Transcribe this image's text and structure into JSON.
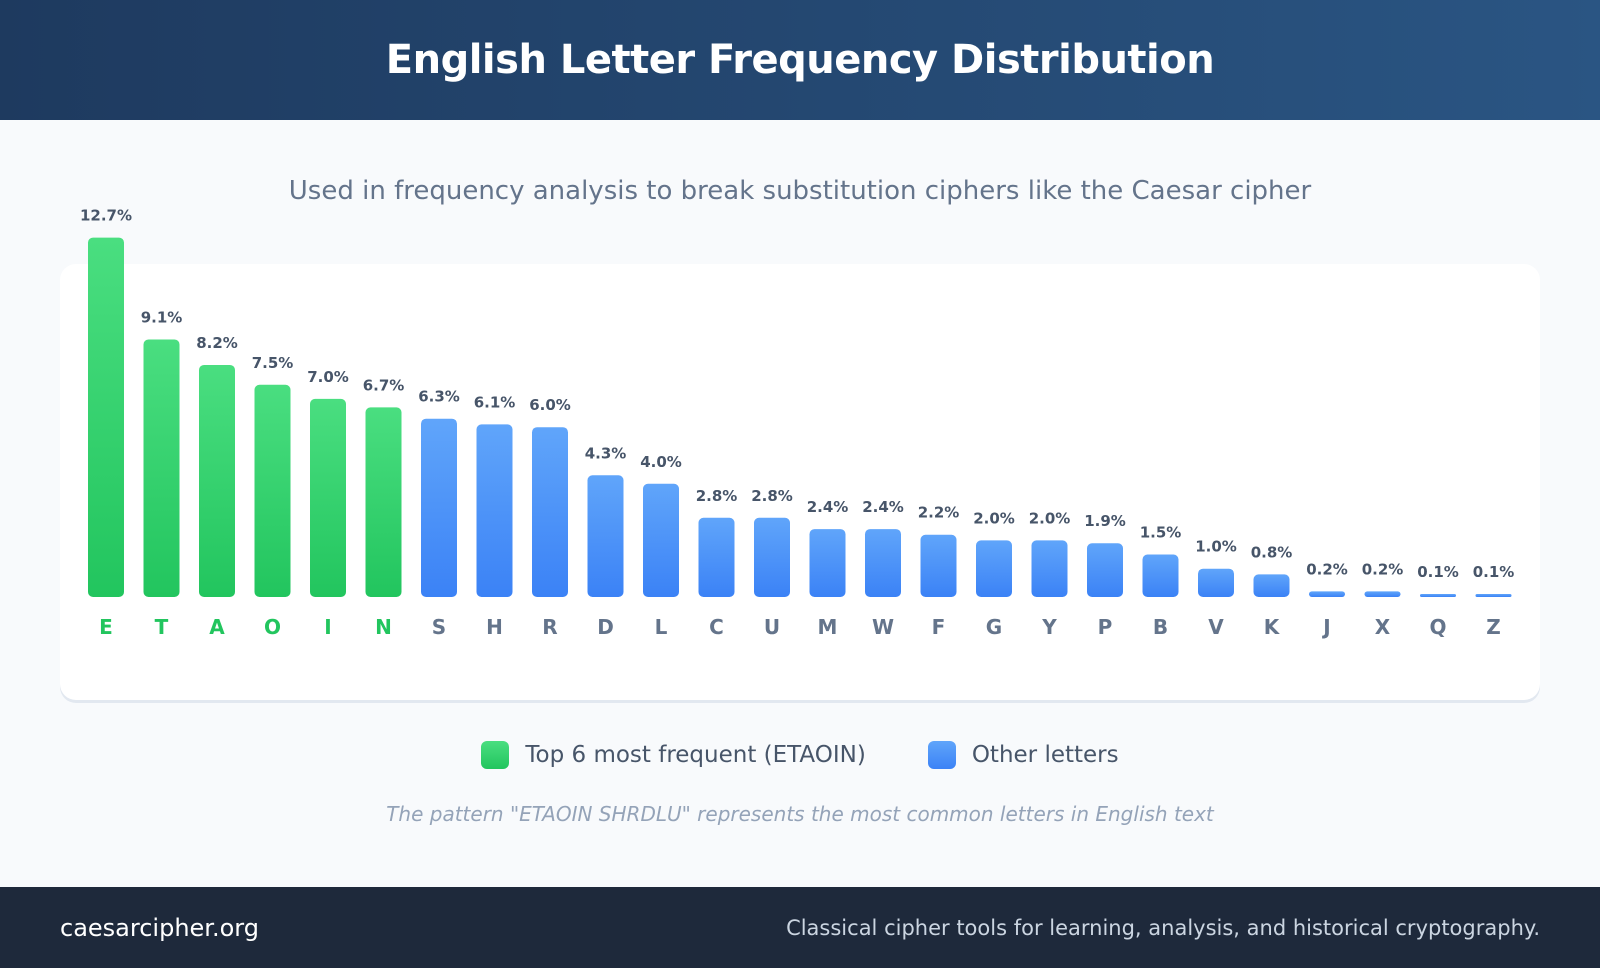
{
  "header": {
    "title": "English Letter Frequency Distribution"
  },
  "subtitle": "Used in frequency analysis to break substitution ciphers like the Caesar cipher",
  "legend": {
    "top_label": "Top 6 most frequent (ETAOIN)",
    "other_label": "Other letters"
  },
  "note": "The pattern \"ETAOIN SHRDLU\" represents the most common letters in English text",
  "footer": {
    "brand": "caesarcipher.org",
    "tagline": "Classical cipher tools for learning, analysis, and historical cryptography."
  },
  "colors": {
    "top_letters": "#22c55e",
    "other_letters": "#3b82f6",
    "header_bg": "#1e3a5f",
    "footer_bg": "#1e293b"
  },
  "chart_data": {
    "type": "bar",
    "title": "English Letter Frequency Distribution",
    "xlabel": "",
    "ylabel": "",
    "grid": false,
    "legend_position": "bottom-center",
    "highlight_count": 6,
    "categories": [
      "E",
      "T",
      "A",
      "O",
      "I",
      "N",
      "S",
      "H",
      "R",
      "D",
      "L",
      "C",
      "U",
      "M",
      "W",
      "F",
      "G",
      "Y",
      "P",
      "B",
      "V",
      "K",
      "J",
      "X",
      "Q",
      "Z"
    ],
    "values": [
      12.7,
      9.1,
      8.2,
      7.5,
      7.0,
      6.7,
      6.3,
      6.1,
      6.0,
      4.3,
      4.0,
      2.8,
      2.8,
      2.4,
      2.4,
      2.2,
      2.0,
      2.0,
      1.9,
      1.5,
      1.0,
      0.8,
      0.2,
      0.2,
      0.1,
      0.1
    ],
    "value_labels": [
      "12.7%",
      "9.1%",
      "8.2%",
      "7.5%",
      "7.0%",
      "6.7%",
      "6.3%",
      "6.1%",
      "6.0%",
      "4.3%",
      "4.0%",
      "2.8%",
      "2.8%",
      "2.4%",
      "2.4%",
      "2.2%",
      "2.0%",
      "2.0%",
      "1.9%",
      "1.5%",
      "1.0%",
      "0.8%",
      "0.2%",
      "0.2%",
      "0.1%",
      "0.1%"
    ],
    "series": [
      {
        "name": "Top 6 most frequent (ETAOIN)",
        "categories": [
          "E",
          "T",
          "A",
          "O",
          "I",
          "N"
        ]
      },
      {
        "name": "Other letters",
        "categories": [
          "S",
          "H",
          "R",
          "D",
          "L",
          "C",
          "U",
          "M",
          "W",
          "F",
          "G",
          "Y",
          "P",
          "B",
          "V",
          "K",
          "J",
          "X",
          "Q",
          "Z"
        ]
      }
    ]
  }
}
